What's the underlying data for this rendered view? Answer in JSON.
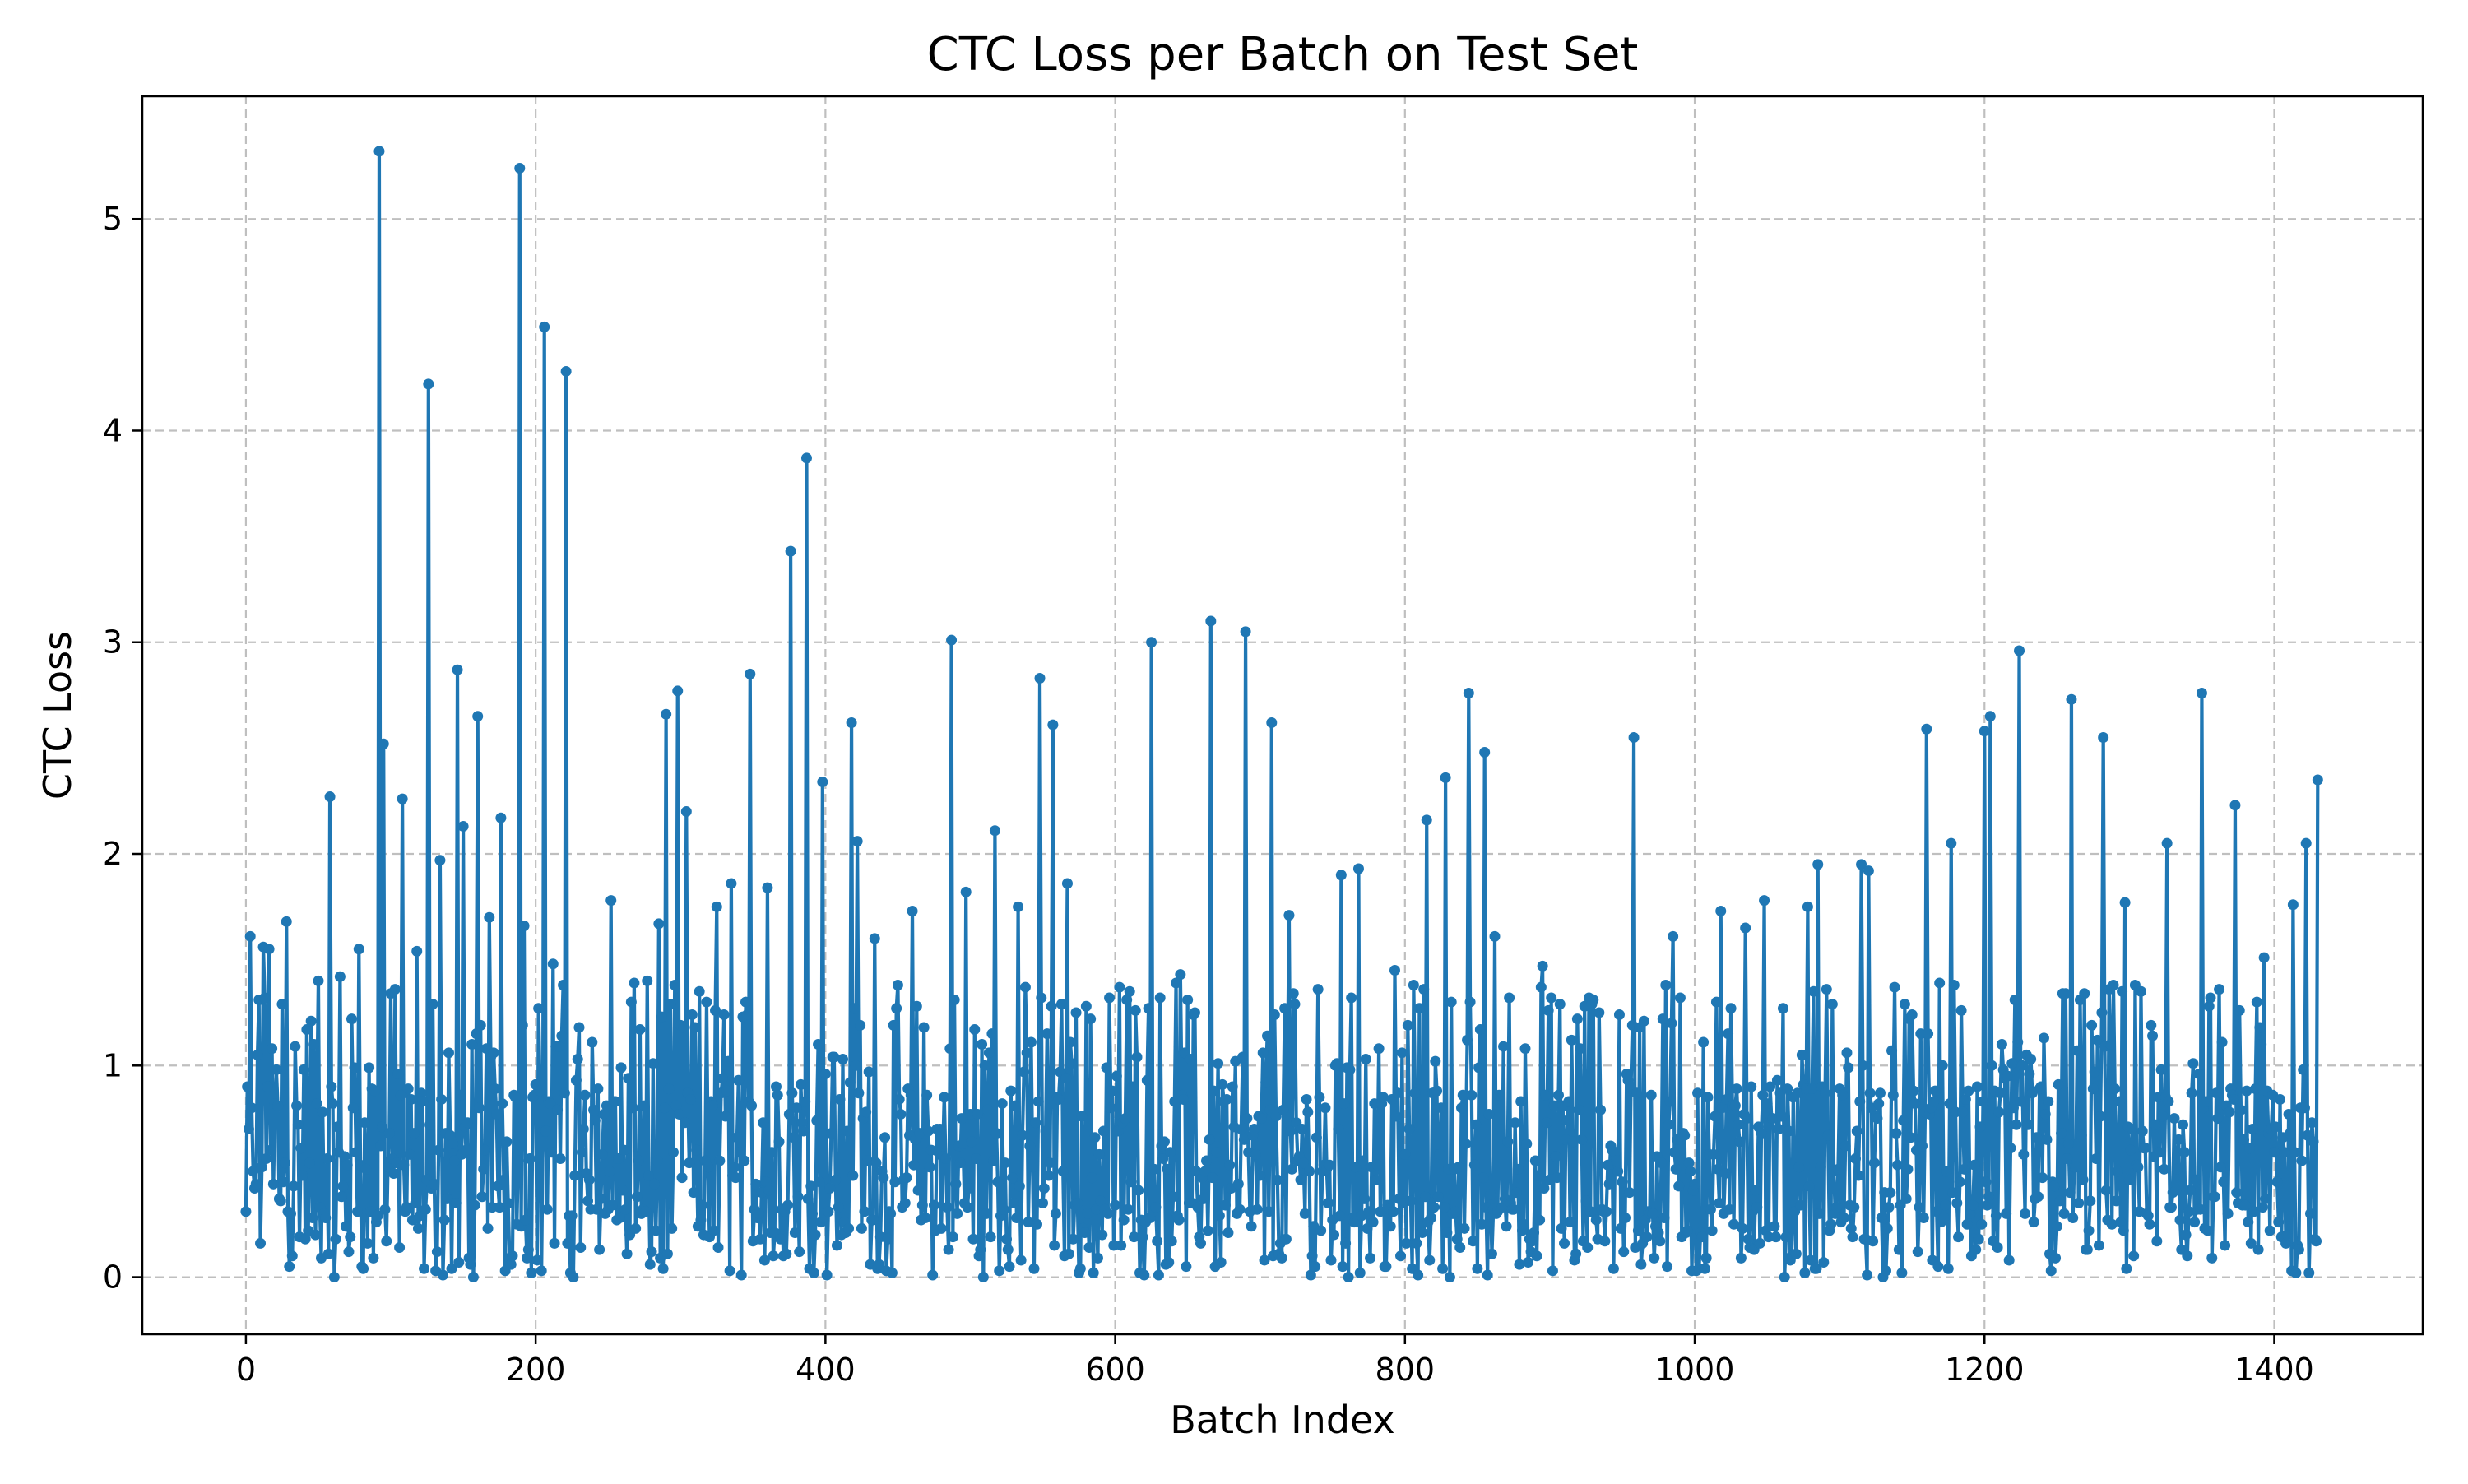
{
  "chart_data": {
    "type": "line",
    "title": "CTC Loss per Batch on Test Set",
    "xlabel": "Batch Index",
    "ylabel": "CTC Loss",
    "xlim": [
      -71.5,
      1502.5
    ],
    "ylim": [
      -0.27,
      5.58
    ],
    "xticks": [
      0,
      200,
      400,
      600,
      800,
      1000,
      1200,
      1400
    ],
    "yticks": [
      0,
      1,
      2,
      3,
      4,
      5
    ],
    "grid": true,
    "legend": "none",
    "colors": {
      "series": "#1f77b4"
    },
    "series": [
      {
        "markers": "small-circle",
        "n_points": 1431,
        "peaks": [
          {
            "x": 0,
            "y": 0.31
          },
          {
            "x": 3,
            "y": 1.61
          },
          {
            "x": 8,
            "y": 1.05
          },
          {
            "x": 12,
            "y": 1.56
          },
          {
            "x": 16,
            "y": 1.55
          },
          {
            "x": 25,
            "y": 1.29
          },
          {
            "x": 28,
            "y": 1.68
          },
          {
            "x": 40,
            "y": 0.98
          },
          {
            "x": 50,
            "y": 1.4
          },
          {
            "x": 58,
            "y": 2.27
          },
          {
            "x": 65,
            "y": 1.42
          },
          {
            "x": 78,
            "y": 1.55
          },
          {
            "x": 92,
            "y": 5.32
          },
          {
            "x": 95,
            "y": 2.52
          },
          {
            "x": 100,
            "y": 1.34
          },
          {
            "x": 108,
            "y": 2.26
          },
          {
            "x": 118,
            "y": 1.54
          },
          {
            "x": 126,
            "y": 4.22
          },
          {
            "x": 134,
            "y": 1.97
          },
          {
            "x": 146,
            "y": 2.87
          },
          {
            "x": 150,
            "y": 2.13
          },
          {
            "x": 160,
            "y": 2.65
          },
          {
            "x": 168,
            "y": 1.7
          },
          {
            "x": 176,
            "y": 2.17
          },
          {
            "x": 189,
            "y": 5.24
          },
          {
            "x": 192,
            "y": 1.66
          },
          {
            "x": 206,
            "y": 4.49
          },
          {
            "x": 212,
            "y": 1.48
          },
          {
            "x": 221,
            "y": 4.28
          },
          {
            "x": 230,
            "y": 1.18
          },
          {
            "x": 252,
            "y": 1.78
          },
          {
            "x": 268,
            "y": 1.39
          },
          {
            "x": 285,
            "y": 1.67
          },
          {
            "x": 290,
            "y": 2.66
          },
          {
            "x": 298,
            "y": 2.77
          },
          {
            "x": 304,
            "y": 2.2
          },
          {
            "x": 318,
            "y": 1.3
          },
          {
            "x": 325,
            "y": 1.75
          },
          {
            "x": 335,
            "y": 1.86
          },
          {
            "x": 348,
            "y": 2.85
          },
          {
            "x": 360,
            "y": 1.84
          },
          {
            "x": 376,
            "y": 3.43
          },
          {
            "x": 387,
            "y": 3.87
          },
          {
            "x": 398,
            "y": 2.34
          },
          {
            "x": 418,
            "y": 2.62
          },
          {
            "x": 422,
            "y": 2.06
          },
          {
            "x": 434,
            "y": 1.6
          },
          {
            "x": 460,
            "y": 1.73
          },
          {
            "x": 487,
            "y": 3.01
          },
          {
            "x": 497,
            "y": 1.82
          },
          {
            "x": 517,
            "y": 2.11
          },
          {
            "x": 533,
            "y": 1.75
          },
          {
            "x": 548,
            "y": 2.83
          },
          {
            "x": 557,
            "y": 2.61
          },
          {
            "x": 567,
            "y": 1.86
          },
          {
            "x": 596,
            "y": 1.32
          },
          {
            "x": 608,
            "y": 1.31
          },
          {
            "x": 625,
            "y": 3.0
          },
          {
            "x": 645,
            "y": 1.43
          },
          {
            "x": 666,
            "y": 3.1
          },
          {
            "x": 690,
            "y": 3.05
          },
          {
            "x": 708,
            "y": 2.62
          },
          {
            "x": 720,
            "y": 1.71
          },
          {
            "x": 740,
            "y": 1.36
          },
          {
            "x": 756,
            "y": 1.9
          },
          {
            "x": 768,
            "y": 1.93
          },
          {
            "x": 793,
            "y": 1.45
          },
          {
            "x": 815,
            "y": 2.16
          },
          {
            "x": 828,
            "y": 2.36
          },
          {
            "x": 844,
            "y": 2.76
          },
          {
            "x": 855,
            "y": 2.48
          },
          {
            "x": 862,
            "y": 1.61
          },
          {
            "x": 895,
            "y": 1.47
          },
          {
            "x": 930,
            "y": 1.31
          },
          {
            "x": 958,
            "y": 2.55
          },
          {
            "x": 985,
            "y": 1.61
          },
          {
            "x": 1018,
            "y": 1.73
          },
          {
            "x": 1035,
            "y": 1.65
          },
          {
            "x": 1048,
            "y": 1.78
          },
          {
            "x": 1078,
            "y": 1.75
          },
          {
            "x": 1085,
            "y": 1.95
          },
          {
            "x": 1115,
            "y": 1.95
          },
          {
            "x": 1120,
            "y": 1.92
          },
          {
            "x": 1160,
            "y": 2.59
          },
          {
            "x": 1177,
            "y": 2.05
          },
          {
            "x": 1200,
            "y": 2.58
          },
          {
            "x": 1204,
            "y": 2.65
          },
          {
            "x": 1224,
            "y": 2.96
          },
          {
            "x": 1260,
            "y": 2.73
          },
          {
            "x": 1282,
            "y": 2.55
          },
          {
            "x": 1297,
            "y": 1.77
          },
          {
            "x": 1326,
            "y": 2.05
          },
          {
            "x": 1350,
            "y": 2.76
          },
          {
            "x": 1373,
            "y": 2.23
          },
          {
            "x": 1393,
            "y": 1.51
          },
          {
            "x": 1413,
            "y": 1.76
          },
          {
            "x": 1422,
            "y": 2.05
          },
          {
            "x": 1430,
            "y": 2.35
          }
        ],
        "baseline": {
          "low": 0.0,
          "median": 0.5,
          "high": 1.2
        }
      }
    ]
  }
}
